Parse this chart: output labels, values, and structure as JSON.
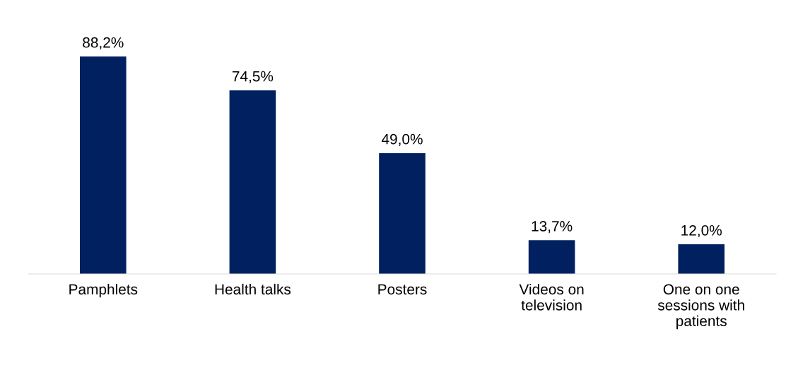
{
  "chart_data": {
    "type": "bar",
    "categories": [
      "Pamphlets",
      "Health talks",
      "Posters",
      "Videos on\ntelevision",
      "One on one\nsessions with\npatients"
    ],
    "values": [
      88.2,
      74.5,
      49.0,
      13.7,
      12.0
    ],
    "value_labels": [
      "88,2%",
      "74,5%",
      "49,0%",
      "13,7%",
      "12,0%"
    ],
    "color": "#002060",
    "tick_labels": "x",
    "grid": false,
    "legend": false
  }
}
